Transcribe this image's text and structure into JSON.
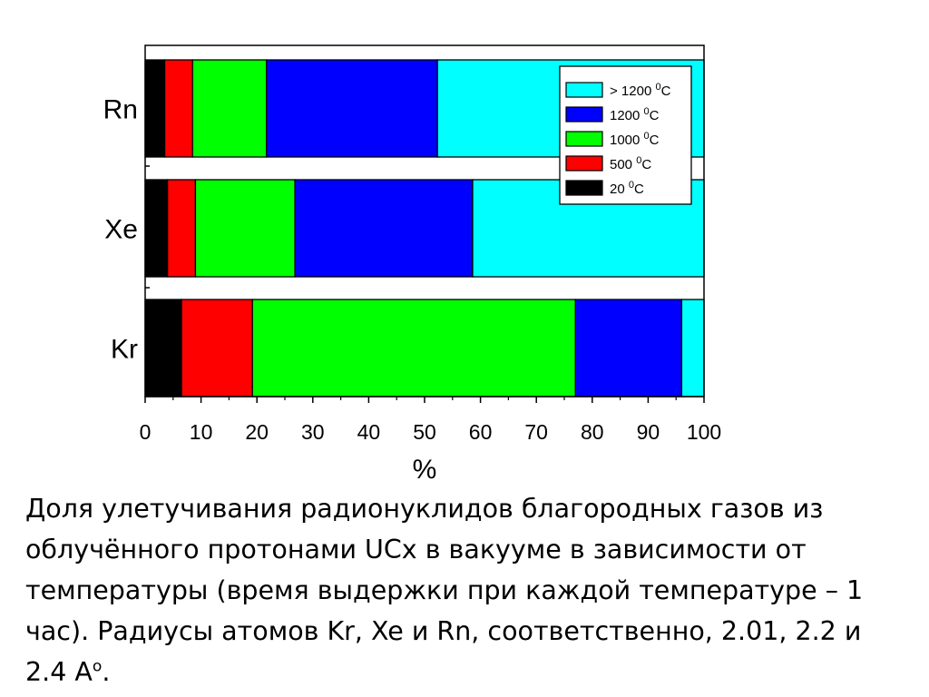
{
  "chart_data": {
    "type": "bar",
    "orientation": "horizontal",
    "stacked": true,
    "categories": [
      "Kr",
      "Xe",
      "Rn"
    ],
    "xlabel": "%",
    "xlim": [
      0,
      100
    ],
    "xticks": [
      "0",
      "10",
      "20",
      "30",
      "40",
      "50",
      "60",
      "70",
      "80",
      "90",
      "100"
    ],
    "grid": false,
    "legend_position": "top-right",
    "series": [
      {
        "name": "20",
        "unit": "C",
        "unit_sup": "0",
        "color": "#000000",
        "values": [
          6.5,
          4.0,
          3.5
        ]
      },
      {
        "name": "500",
        "unit": "C",
        "unit_sup": "0",
        "color": "#ff0000",
        "values": [
          12.7,
          5.0,
          5.0
        ]
      },
      {
        "name": "1000",
        "unit": "C",
        "unit_sup": "0",
        "color": "#00ff00",
        "values": [
          57.8,
          17.8,
          13.2
        ]
      },
      {
        "name": "1200",
        "unit": "C",
        "unit_sup": "0",
        "color": "#0000ff",
        "values": [
          19.0,
          31.8,
          30.6
        ]
      },
      {
        "name": "> 1200",
        "unit": "C",
        "unit_sup": "0",
        "color": "#00ffff",
        "values": [
          4.0,
          41.4,
          47.7
        ]
      }
    ]
  },
  "caption": {
    "text": "Доля улетучивания радионуклидов благородных газов из облучённого протонами UCx в вакууме в зависимости от температуры (время выдержки при каждой температуре – 1 час). Радиусы атомов Kr, Xe и Rn, соответственно, 2.01, 2.2 и 2.4 А",
    "sup": "o",
    "end": "."
  }
}
